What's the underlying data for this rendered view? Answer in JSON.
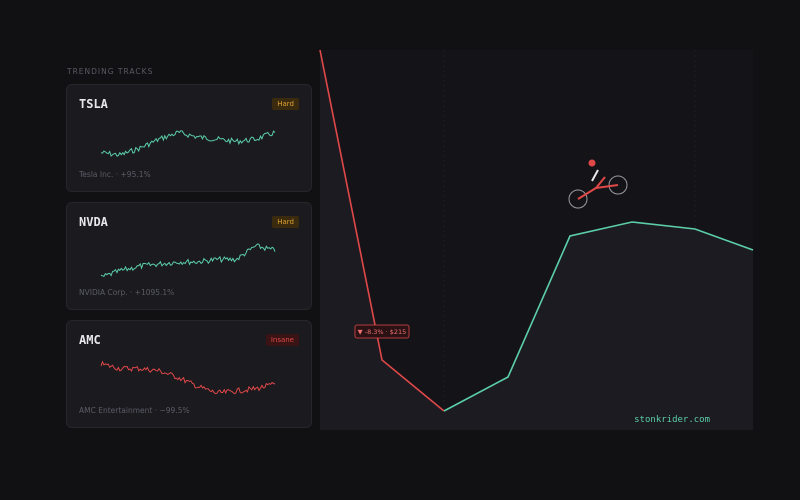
{
  "sidebar": {
    "heading": "TRENDING TRACKS",
    "cards": [
      {
        "ticker": "TSLA",
        "difficulty": "Hard",
        "subtitle": "Tesla Inc. · +95.1%"
      },
      {
        "ticker": "NVDA",
        "difficulty": "Hard",
        "subtitle": "NVIDIA Corp. · +1095.1%"
      },
      {
        "ticker": "AMC",
        "difficulty": "Insane",
        "subtitle": "AMC Entertainment · −99.5%"
      }
    ]
  },
  "track": {
    "marker": "▼ -8.3% · $215",
    "watermark": "stonkrider.com"
  }
}
